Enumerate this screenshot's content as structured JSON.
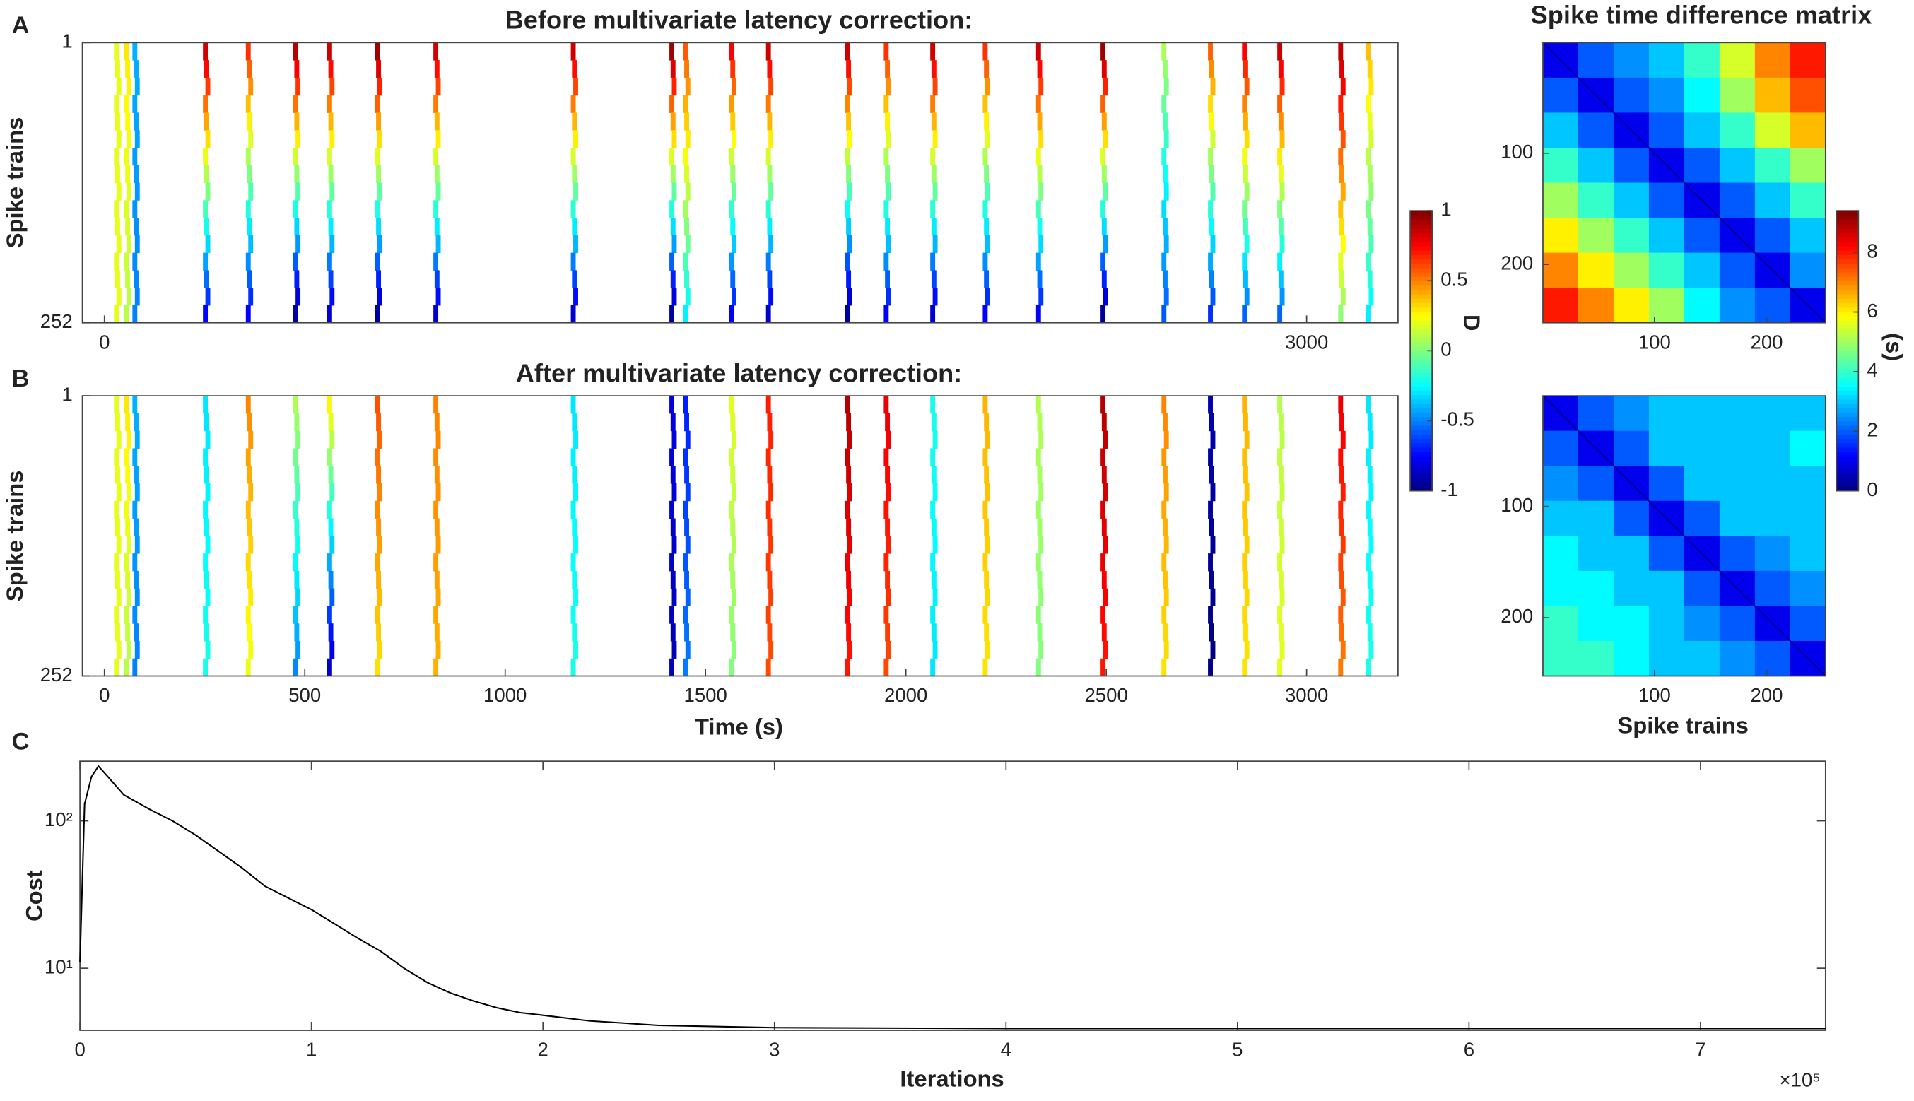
{
  "chart_data": [
    {
      "type": "raster",
      "panel_label": "A",
      "title": "Before multivariate latency correction:",
      "ylabel": "Spike trains",
      "x": [
        33,
        58,
        79,
        255,
        362,
        480,
        565,
        684,
        830,
        1173,
        1419,
        1453,
        1568,
        1660,
        1857,
        1954,
        2070,
        2201,
        2334,
        2495,
        2647,
        2763,
        2848,
        2936,
        3088,
        3158
      ],
      "d_top": [
        0.2,
        0.3,
        -0.4,
        0.9,
        0.7,
        0.95,
        0.9,
        1,
        0.9,
        0.9,
        1,
        0.6,
        0.8,
        0.9,
        0.9,
        0.7,
        0.9,
        0.7,
        0.9,
        1,
        0.1,
        0.6,
        0.8,
        0.9,
        0.9,
        0.4
      ],
      "d_bottom": [
        0.2,
        0.1,
        -0.5,
        -0.8,
        -0.8,
        -1,
        -0.9,
        -1,
        -0.9,
        -0.9,
        -1,
        -0.3,
        -0.8,
        -0.9,
        -1,
        -0.8,
        -0.9,
        -0.8,
        -0.8,
        -1,
        -0.6,
        -0.7,
        -0.6,
        -0.6,
        0,
        -0.3
      ],
      "xlim": [
        -55,
        3228
      ],
      "xticks": [
        0,
        3000
      ],
      "ylim": [
        1,
        252
      ],
      "yticks": [
        1,
        252
      ],
      "colorbar": {
        "label": "D",
        "lim": [
          -1,
          1
        ],
        "ticks": [
          1,
          0.5,
          0,
          -0.5,
          -1
        ]
      }
    },
    {
      "type": "raster",
      "panel_label": "B",
      "title": "After multivariate latency correction:",
      "ylabel": "Spike trains",
      "xlabel": "Time (s)",
      "x": [
        33,
        58,
        79,
        255,
        362,
        480,
        565,
        684,
        830,
        1173,
        1419,
        1453,
        1568,
        1660,
        1857,
        1954,
        2070,
        2201,
        2334,
        2495,
        2647,
        2763,
        2848,
        2936,
        3088,
        3158
      ],
      "d_top": [
        0.2,
        0.3,
        -0.4,
        -0.3,
        0.5,
        0.1,
        0.3,
        0.6,
        0.5,
        -0.3,
        -0.8,
        -0.7,
        0.2,
        0.7,
        0.9,
        0.8,
        -0.2,
        0.4,
        0.1,
        0.9,
        0.5,
        -0.9,
        0.4,
        0.1,
        0.8,
        -0.3
      ],
      "d_bottom": [
        0.2,
        0.1,
        -0.5,
        -0.2,
        0.2,
        -0.5,
        -0.9,
        0.3,
        0.4,
        -0.2,
        -0.9,
        -0.5,
        0,
        0.6,
        0.7,
        0.6,
        -0.3,
        0.3,
        0,
        0.7,
        0.3,
        -1,
        0.3,
        0.2,
        0.5,
        -0.2
      ],
      "xlim": [
        -55,
        3228
      ],
      "xticks": [
        0,
        500,
        1000,
        1500,
        2000,
        2500,
        3000
      ],
      "ylim": [
        1,
        252
      ],
      "yticks": [
        1,
        252
      ]
    },
    {
      "type": "heatmap",
      "title": "Spike time difference matrix",
      "values": [
        [
          1,
          2,
          2.5,
          3,
          4,
          5.5,
          7,
          8
        ],
        [
          2,
          1,
          2,
          2.5,
          3.5,
          5,
          6.5,
          7.5
        ],
        [
          3,
          2,
          1,
          2,
          3,
          4,
          5.5,
          6.5
        ],
        [
          4,
          3,
          2,
          1,
          2,
          3,
          4,
          5
        ],
        [
          5,
          4,
          3,
          2,
          1,
          2,
          3,
          4
        ],
        [
          6,
          5,
          4,
          3,
          2,
          1,
          2,
          3
        ],
        [
          7,
          6,
          5,
          4,
          3,
          2,
          1,
          2.5
        ],
        [
          8,
          7,
          6,
          5,
          3.5,
          2.5,
          2,
          1
        ]
      ],
      "xlim": [
        0.5,
        252.5
      ],
      "ylim": [
        0.5,
        252.5
      ],
      "xticks": [
        100,
        200
      ],
      "yticks": [
        100,
        200
      ],
      "colorbar": {
        "label": "(s)",
        "lim": [
          0,
          9.4
        ],
        "ticks": [
          0,
          2,
          4,
          6,
          8
        ]
      }
    },
    {
      "type": "heatmap",
      "xlabel": "Spike trains",
      "values": [
        [
          1,
          2,
          2.5,
          3,
          3,
          3,
          3,
          3
        ],
        [
          2,
          1,
          2,
          3,
          3,
          3,
          3,
          3.5
        ],
        [
          2.5,
          2,
          1,
          2,
          3,
          3,
          3,
          3
        ],
        [
          3,
          3,
          2,
          1,
          2,
          3,
          3,
          3
        ],
        [
          3.5,
          3,
          3,
          2,
          1,
          2,
          2.5,
          3
        ],
        [
          3.5,
          3.5,
          3,
          3,
          2,
          1,
          2,
          2.5
        ],
        [
          4,
          3.5,
          3.5,
          3,
          2.5,
          2,
          1,
          2
        ],
        [
          4,
          4,
          3.5,
          3,
          3,
          2.5,
          2,
          1
        ]
      ],
      "xlim": [
        0.5,
        252.5
      ],
      "ylim": [
        0.5,
        252.5
      ],
      "xticks": [
        100,
        200
      ],
      "yticks": [
        100,
        200
      ]
    },
    {
      "type": "line",
      "panel_label": "C",
      "ylabel": "Cost",
      "xlabel": "Iterations",
      "x_multiplier": "×10⁵",
      "log_y": true,
      "color": "#000000",
      "x": [
        0,
        0.02,
        0.05,
        0.08,
        0.12,
        0.19,
        0.3,
        0.4,
        0.5,
        0.6,
        0.7,
        0.8,
        0.9,
        1.0,
        1.1,
        1.2,
        1.3,
        1.4,
        1.5,
        1.6,
        1.7,
        1.8,
        1.9,
        2.0,
        2.2,
        2.5,
        3,
        4,
        5,
        6,
        7,
        7.54
      ],
      "values": [
        11,
        130,
        200,
        235,
        200,
        150,
        120,
        100,
        80,
        62,
        48,
        36,
        30,
        25,
        20,
        16,
        13,
        10,
        8,
        6.8,
        6,
        5.4,
        5,
        4.8,
        4.4,
        4.1,
        3.95,
        3.9,
        3.9,
        3.9,
        3.9,
        3.9
      ],
      "xlim": [
        0,
        7.54
      ],
      "xticks": [
        0,
        1,
        2,
        3,
        4,
        5,
        6,
        7
      ],
      "ylim": [
        3.79,
        254
      ],
      "yticks": [
        {
          "value": 10,
          "label": "10¹"
        },
        {
          "value": 100,
          "label": "10²"
        }
      ]
    }
  ]
}
